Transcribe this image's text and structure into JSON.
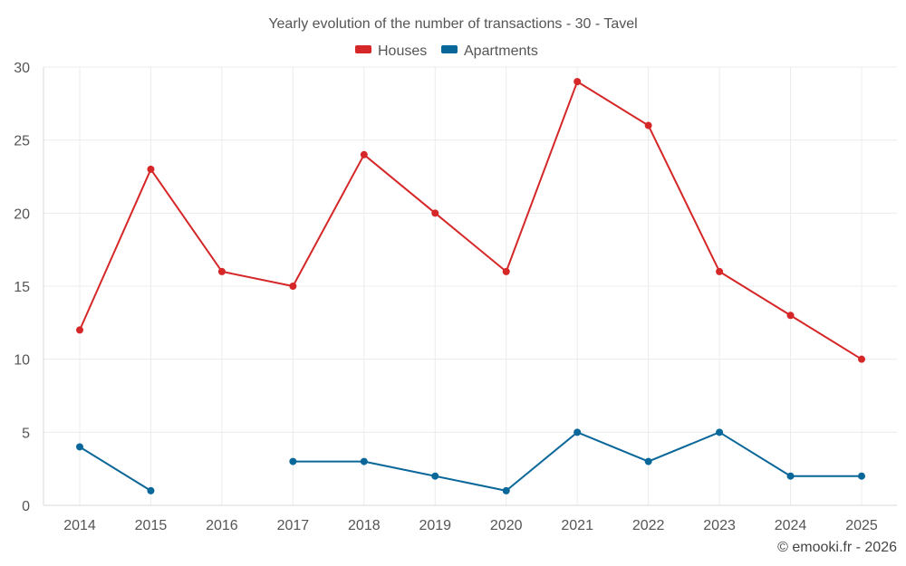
{
  "chart_data": {
    "type": "line",
    "title": "Yearly evolution of the number of transactions - 30 - Tavel",
    "categories": [
      "2014",
      "2015",
      "2016",
      "2017",
      "2018",
      "2019",
      "2020",
      "2021",
      "2022",
      "2023",
      "2024",
      "2025"
    ],
    "series": [
      {
        "name": "Houses",
        "color": "#d62728",
        "values": [
          12,
          23,
          16,
          15,
          24,
          20,
          16,
          29,
          26,
          16,
          13,
          10
        ]
      },
      {
        "name": "Apartments",
        "color": "#0a6799",
        "values": [
          4,
          1,
          null,
          3,
          3,
          2,
          1,
          5,
          3,
          5,
          2,
          2
        ]
      }
    ],
    "ylim": [
      0,
      30
    ],
    "yticks": [
      0,
      5,
      10,
      15,
      20,
      25,
      30
    ],
    "grid": true,
    "legend_position": "top-center",
    "credit": "© emooki.fr - 2026"
  }
}
